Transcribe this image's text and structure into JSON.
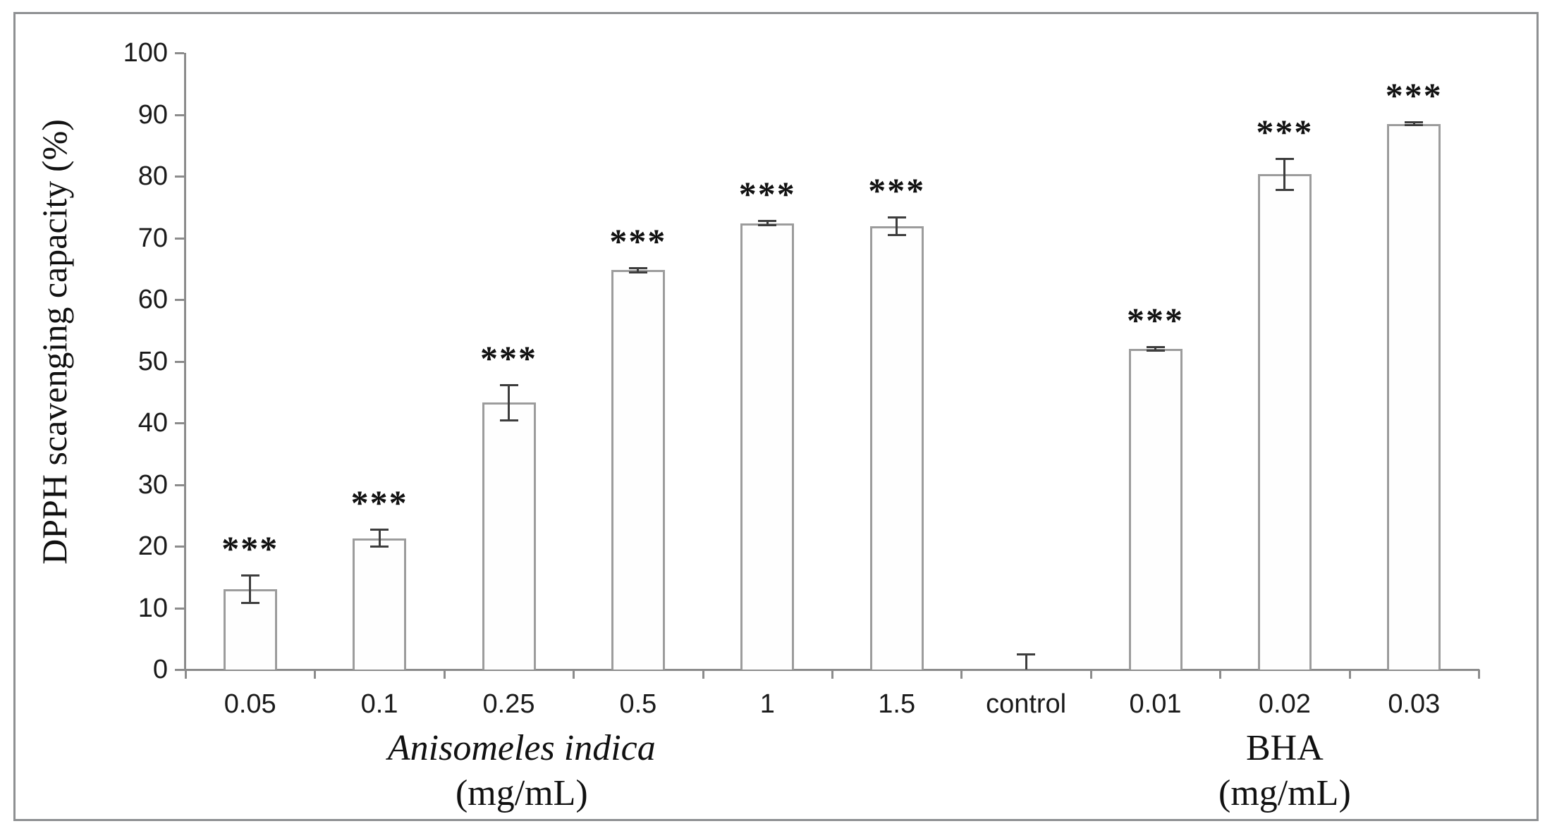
{
  "figure": {
    "background": "#ffffff",
    "frame_color": "#8e9092"
  },
  "chart_data": {
    "type": "bar",
    "title": "",
    "ylabel": "DPPH scavenging capacity (%)",
    "xlabel": "",
    "ylim": [
      0,
      100
    ],
    "ytick_step": 10,
    "yticks": [
      0,
      10,
      20,
      30,
      40,
      50,
      60,
      70,
      80,
      90,
      100
    ],
    "grid": false,
    "legend": null,
    "categories": [
      "0.05",
      "0.1",
      "0.25",
      "0.5",
      "1",
      "1.5",
      "control",
      "0.01",
      "0.02",
      "0.03"
    ],
    "series": [
      {
        "name": "DPPH scavenging capacity",
        "values": [
          13.0,
          21.3,
          43.3,
          64.8,
          72.4,
          71.9,
          0,
          52.0,
          80.3,
          88.5
        ],
        "errors": [
          2.3,
          1.4,
          2.9,
          0.4,
          0.4,
          1.5,
          2.5,
          0.3,
          2.6,
          0.3
        ],
        "significance": [
          "***",
          "***",
          "***",
          "***",
          "***",
          "***",
          "",
          "***",
          "***",
          "***"
        ]
      }
    ],
    "group_labels": [
      {
        "title": "Anisomeles indica",
        "unit": "(mg/mL)",
        "italic": true,
        "center_index": 2.1
      },
      {
        "title": "BHA",
        "unit": "(mg/mL)",
        "italic": false,
        "center_index": 8.0
      }
    ],
    "colors": {
      "bar_fill": "#fefefe",
      "bar_stroke": "#9c9c9c",
      "error_bar": "#3d3d3d",
      "axis": "#8c8c8c",
      "text": "#1a1a1a"
    }
  }
}
